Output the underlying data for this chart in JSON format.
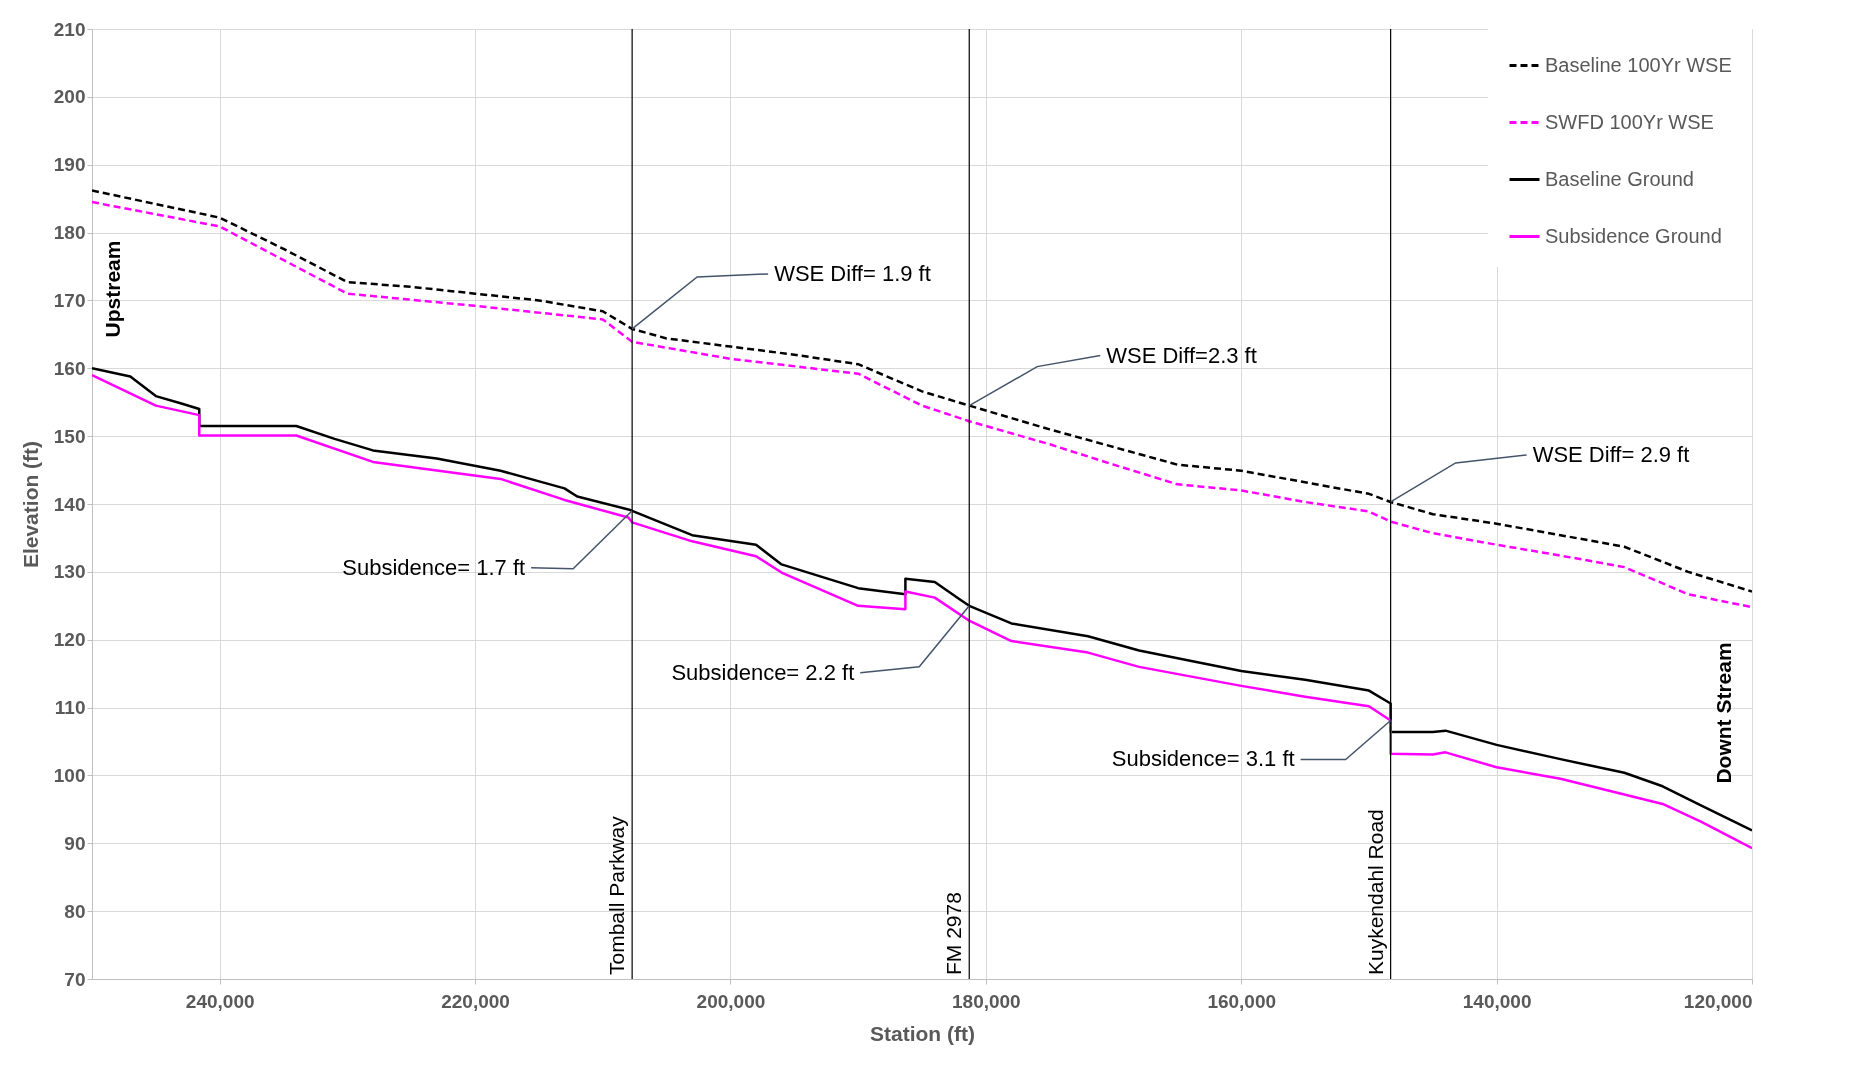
{
  "chart_data": {
    "type": "line",
    "xlabel": "Station (ft)",
    "ylabel": "Elevation (ft)",
    "xlim": [
      250000,
      120000
    ],
    "xticks": [
      {
        "value": 240000,
        "label": "240,000"
      },
      {
        "value": 220000,
        "label": "220,000"
      },
      {
        "value": 200000,
        "label": "200,000"
      },
      {
        "value": 180000,
        "label": "180,000"
      },
      {
        "value": 160000,
        "label": "160,000"
      },
      {
        "value": 140000,
        "label": "140,000"
      },
      {
        "value": 120000,
        "label": "120,000"
      }
    ],
    "ylim": [
      70,
      210
    ],
    "yticks": [
      70,
      80,
      90,
      100,
      110,
      120,
      130,
      140,
      150,
      160,
      170,
      180,
      190,
      200,
      210
    ],
    "grid": true,
    "legend": "top right",
    "series": [
      {
        "name": "Baseline 100Yr WSE",
        "color": "#000000",
        "line_style": "dashed",
        "x": [
          250000,
          245000,
          240000,
          235000,
          230000,
          225000,
          220000,
          215000,
          210000,
          207700,
          205000,
          200000,
          195000,
          190000,
          185000,
          181300,
          175000,
          170000,
          165000,
          160000,
          155000,
          150000,
          148300,
          145000,
          140000,
          135000,
          130000,
          125000,
          120000
        ],
        "values": [
          186.2,
          184.2,
          182.2,
          177.6,
          172.7,
          172.0,
          171.0,
          170.0,
          168.4,
          165.8,
          164.4,
          163.2,
          162.0,
          160.6,
          156.6,
          154.5,
          151.0,
          148.4,
          145.8,
          144.9,
          143.2,
          141.5,
          140.3,
          138.5,
          137.1,
          135.4,
          133.7,
          130.0,
          127.1
        ]
      },
      {
        "name": "SWFD 100Yr WSE",
        "color": "#ff00ff",
        "line_style": "dashed",
        "x": [
          250000,
          240000,
          230000,
          220000,
          210000,
          207700,
          200000,
          190000,
          185000,
          181300,
          175000,
          170000,
          165000,
          160000,
          155000,
          150000,
          148300,
          145000,
          140000,
          135000,
          130000,
          125000,
          120000
        ],
        "values": [
          184.5,
          180.9,
          171.0,
          169.2,
          167.2,
          163.9,
          161.4,
          159.2,
          154.5,
          152.2,
          148.8,
          145.8,
          142.9,
          142.0,
          140.3,
          138.9,
          137.4,
          135.7,
          134.0,
          132.4,
          130.7,
          126.7,
          124.8
        ]
      },
      {
        "name": "Baseline Ground",
        "color": "#000000",
        "line_style": "solid",
        "x": [
          250000,
          247000,
          245000,
          243000,
          241600,
          241600,
          238000,
          234000,
          231000,
          228000,
          223000,
          218000,
          213000,
          212000,
          208000,
          207700,
          203000,
          198000,
          196000,
          190000,
          186300,
          186300,
          184000,
          182000,
          181300,
          178000,
          172000,
          168000,
          160000,
          155000,
          150000,
          148300,
          148300,
          145000,
          144000,
          140000,
          135000,
          130000,
          127000,
          124000,
          120000
        ],
        "values": [
          160.0,
          158.8,
          155.9,
          154.8,
          154.0,
          151.5,
          151.5,
          151.5,
          149.6,
          147.9,
          146.7,
          144.9,
          142.3,
          141.1,
          139.2,
          139.0,
          135.4,
          134.0,
          131.1,
          127.6,
          126.7,
          129.0,
          128.5,
          125.9,
          125.0,
          122.4,
          120.5,
          118.4,
          115.4,
          114.1,
          112.5,
          110.6,
          106.4,
          106.4,
          106.6,
          104.5,
          102.4,
          100.4,
          98.4,
          95.6,
          91.9
        ]
      },
      {
        "name": "Subsidence Ground",
        "color": "#ff00ff",
        "line_style": "solid",
        "x": [
          250000,
          245000,
          241600,
          241600,
          234000,
          228000,
          218000,
          213000,
          208000,
          207700,
          203000,
          198000,
          196000,
          190000,
          186300,
          186300,
          184000,
          181300,
          178000,
          172000,
          168000,
          160000,
          155000,
          150000,
          148300,
          148300,
          145000,
          144000,
          140000,
          135000,
          130000,
          127000,
          124000,
          120000
        ],
        "values": [
          159.0,
          154.5,
          153.1,
          150.1,
          150.1,
          146.2,
          143.7,
          140.6,
          138.0,
          137.3,
          134.5,
          132.3,
          129.9,
          125.0,
          124.5,
          127.1,
          126.2,
          122.8,
          119.8,
          118.1,
          116.0,
          113.2,
          111.6,
          110.2,
          108.1,
          103.2,
          103.1,
          103.4,
          101.2,
          99.5,
          97.2,
          95.8,
          93.2,
          89.3
        ]
      }
    ],
    "ref_lines": [
      {
        "axis": "x",
        "value": 207700,
        "label": "Tomball Parkway"
      },
      {
        "axis": "x",
        "value": 181300,
        "label": "FM 2978"
      },
      {
        "axis": "x",
        "value": 148300,
        "label": "Kuykendahl Road"
      }
    ],
    "annotations": [
      {
        "text": "WSE Diff= 1.9 ft",
        "x": 207700,
        "y": 165.8
      },
      {
        "text": "WSE Diff=2.3 ft",
        "x": 181300,
        "y": 154.5
      },
      {
        "text": "WSE Diff= 2.9 ft",
        "x": 148300,
        "y": 140.3
      },
      {
        "text": "Subsidence= 1.7 ft",
        "x": 207700,
        "y": 139.0
      },
      {
        "text": "Subsidence= 2.2 ft",
        "x": 181300,
        "y": 125.0
      },
      {
        "text": "Subsidence= 3.1 ft",
        "x": 148300,
        "y": 108.1
      },
      "Upstream",
      "Downt Stream"
    ]
  }
}
